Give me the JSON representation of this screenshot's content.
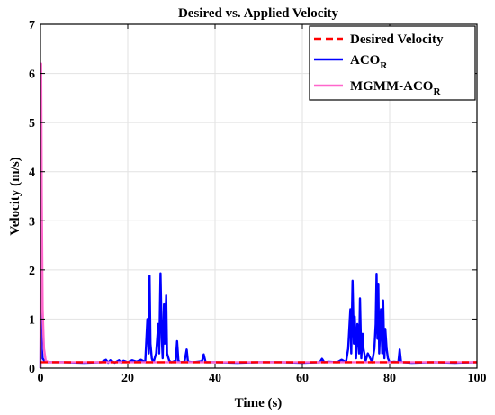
{
  "chart_data": {
    "type": "line",
    "title": "Desired vs. Applied Velocity",
    "xlabel": "Time (s)",
    "ylabel": "Velocity (m/s)",
    "xlim": [
      0,
      100
    ],
    "ylim": [
      0,
      7
    ],
    "xticks": [
      0,
      20,
      40,
      60,
      80,
      100
    ],
    "yticks": [
      0,
      1,
      2,
      3,
      4,
      5,
      6,
      7
    ],
    "grid": true,
    "legend_position": "top-right",
    "series": [
      {
        "name": "Desired Velocity",
        "name_sub": "",
        "color": "#ff0000",
        "style": "dashed",
        "x": [
          0,
          100
        ],
        "y": [
          0.12,
          0.12
        ]
      },
      {
        "name": "ACO",
        "name_sub": "R",
        "color": "#0000ff",
        "style": "solid",
        "x": [
          0,
          0.1,
          0.2,
          0.3,
          0.5,
          1,
          2,
          5,
          10,
          14,
          15,
          15.5,
          16,
          17,
          18,
          18.5,
          19,
          20,
          21,
          22,
          23,
          24,
          24.5,
          24.8,
          25,
          25.2,
          25.5,
          25.8,
          26,
          26.5,
          27,
          27.2,
          27.5,
          27.8,
          28,
          28.3,
          28.5,
          28.8,
          29,
          29.5,
          30,
          31,
          31.3,
          31.6,
          32,
          33,
          33.5,
          33.8,
          34,
          35,
          36,
          37,
          37.4,
          37.8,
          38,
          40,
          45,
          50,
          55,
          60,
          64,
          64.5,
          65,
          66,
          68,
          69,
          70,
          70.5,
          71,
          71.2,
          71.5,
          71.8,
          72,
          72.3,
          72.6,
          73,
          73.2,
          73.5,
          73.8,
          74,
          74.5,
          75,
          76,
          76.5,
          76.8,
          77,
          77.2,
          77.4,
          77.6,
          78,
          78.3,
          78.5,
          78.8,
          79,
          79.3,
          79.6,
          80,
          81,
          82,
          82.3,
          82.6,
          83,
          85,
          90,
          95,
          100
        ],
        "y": [
          0,
          1.5,
          0.8,
          0.4,
          0.2,
          0.13,
          0.12,
          0.12,
          0.11,
          0.12,
          0.17,
          0.11,
          0.16,
          0.11,
          0.16,
          0.11,
          0.15,
          0.12,
          0.16,
          0.13,
          0.17,
          0.12,
          1.0,
          0.3,
          1.88,
          0.5,
          0.2,
          0.12,
          0.15,
          0.3,
          0.9,
          0.3,
          1.93,
          0.6,
          0.2,
          1.3,
          0.5,
          1.48,
          0.3,
          0.15,
          0.12,
          0.15,
          0.55,
          0.15,
          0.12,
          0.13,
          0.38,
          0.12,
          0.13,
          0.12,
          0.13,
          0.14,
          0.28,
          0.13,
          0.12,
          0.12,
          0.11,
          0.12,
          0.12,
          0.11,
          0.12,
          0.19,
          0.12,
          0.13,
          0.12,
          0.17,
          0.12,
          0.4,
          1.2,
          0.3,
          1.78,
          0.5,
          1.05,
          0.2,
          0.9,
          0.3,
          1.42,
          0.2,
          0.7,
          0.4,
          0.15,
          0.3,
          0.12,
          0.4,
          0.9,
          1.92,
          0.6,
          1.72,
          0.3,
          1.2,
          0.3,
          1.38,
          0.2,
          0.8,
          0.4,
          0.2,
          0.12,
          0.13,
          0.12,
          0.38,
          0.13,
          0.12,
          0.11,
          0.12,
          0.11,
          0.12
        ]
      },
      {
        "name": "MGMM-ACO",
        "name_sub": "R",
        "color": "#ff66cc",
        "style": "solid",
        "x": [
          0,
          0.15,
          0.3,
          0.5,
          0.8,
          1.2,
          2,
          5,
          10,
          20,
          30,
          40,
          50,
          60,
          70,
          80,
          90,
          100
        ],
        "y": [
          0,
          6.2,
          3.5,
          1.2,
          0.4,
          0.15,
          0.12,
          0.12,
          0.12,
          0.12,
          0.12,
          0.12,
          0.12,
          0.12,
          0.12,
          0.12,
          0.12,
          0.12
        ]
      }
    ]
  }
}
